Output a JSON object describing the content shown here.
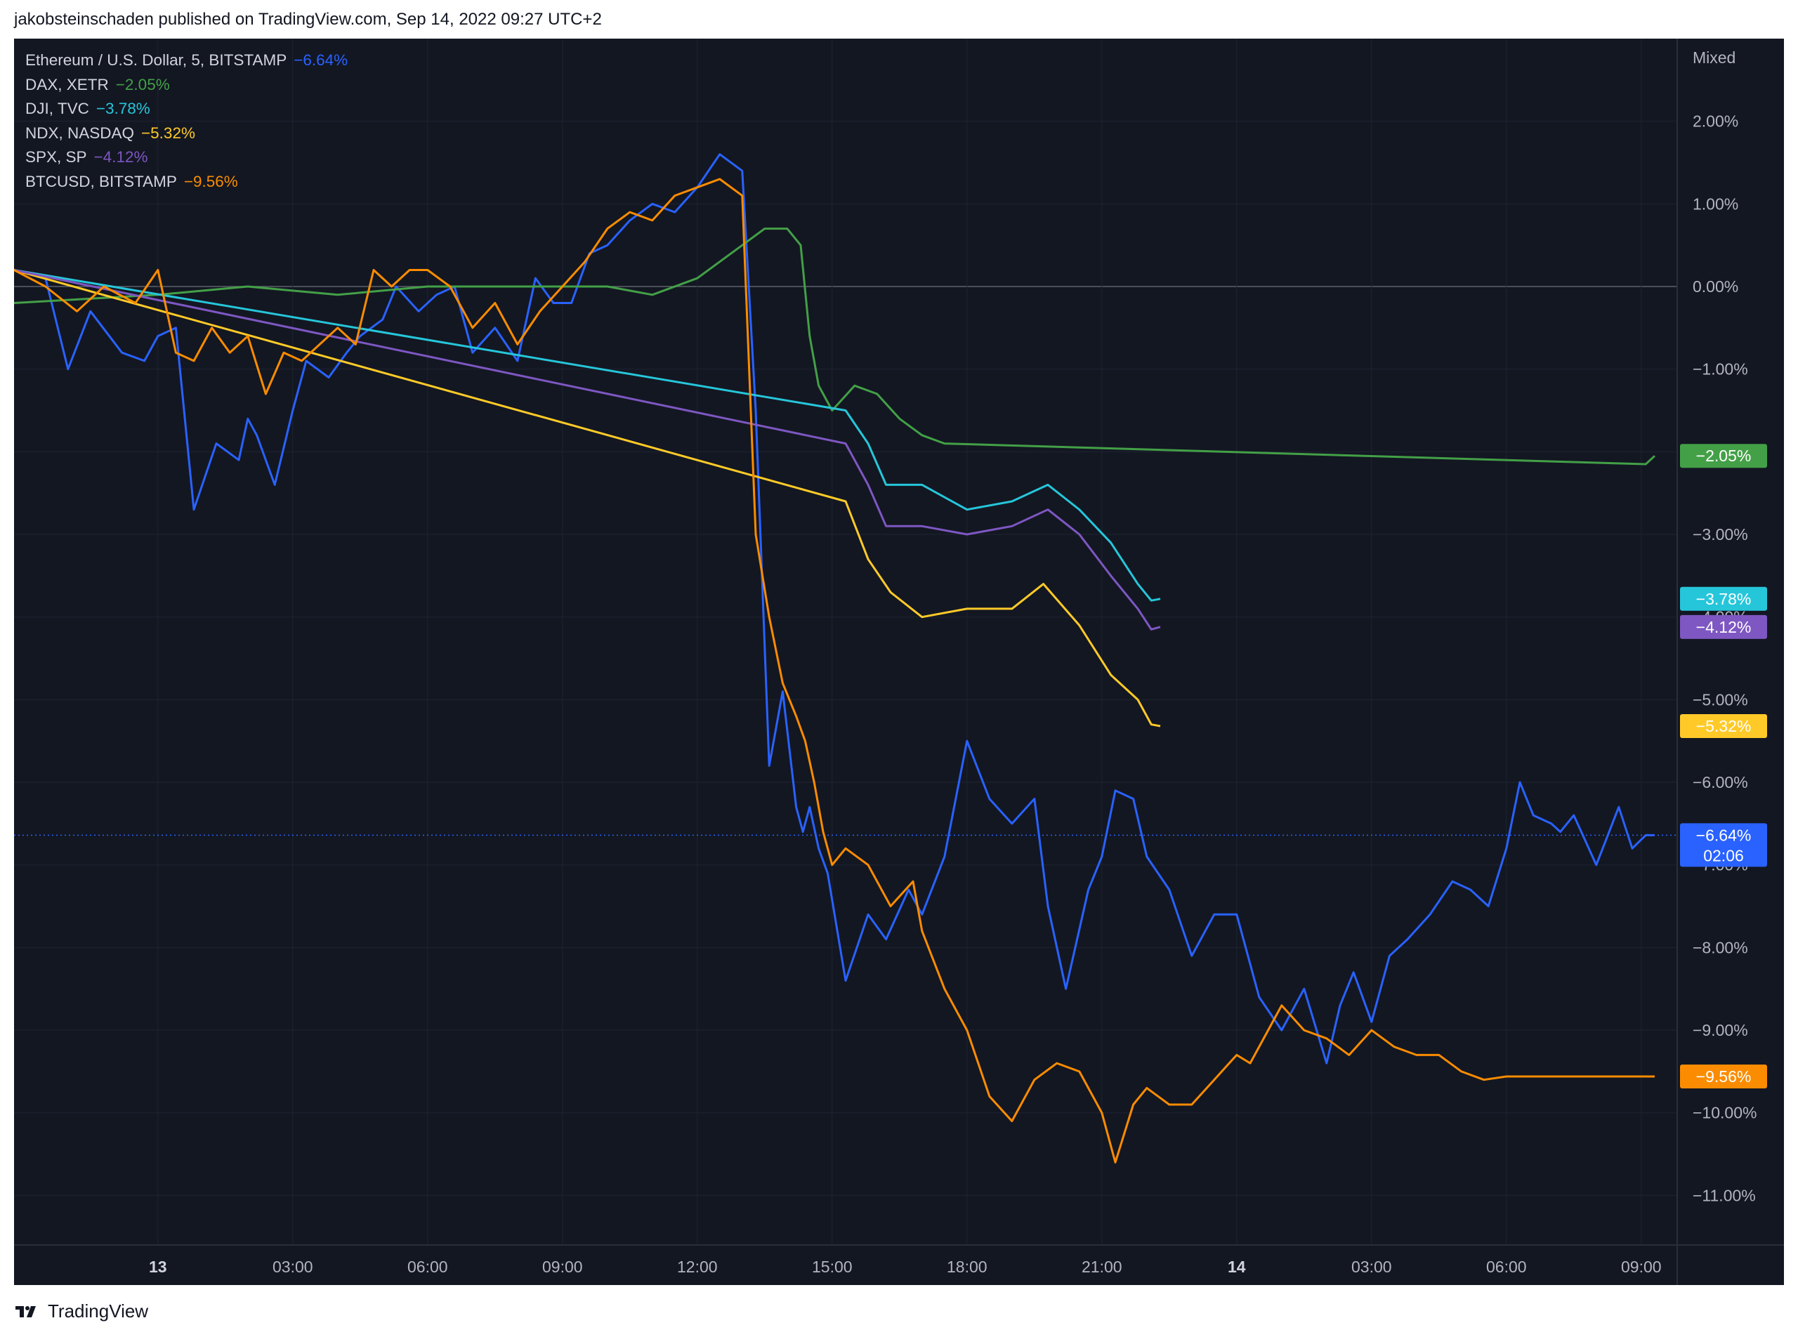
{
  "header": {
    "text": "jakobsteinschaden published on TradingView.com, Sep 14, 2022 09:27 UTC+2"
  },
  "footer": {
    "brand": "TradingView",
    "logo_icon": "tradingview-logo-icon"
  },
  "chart_data": {
    "type": "line",
    "scale_mode": "Mixed",
    "grid": true,
    "legend_placement": "top-left",
    "ylim": [
      -11.6,
      3.0
    ],
    "y_ticks": [
      2,
      1,
      0,
      -1,
      -2,
      -3,
      -4,
      -5,
      -6,
      -7,
      -8,
      -9,
      -10,
      -11
    ],
    "y_tick_labels": [
      "2.00%",
      "1.00%",
      "0.00%",
      "−1.00%",
      "−2.00%",
      "−3.00%",
      "−4.00%",
      "−5.00%",
      "−6.00%",
      "−7.00%",
      "−8.00%",
      "−9.00%",
      "−10.00%",
      "−11.00%"
    ],
    "xlim": [
      -3.2,
      33.8
    ],
    "x_ticks": [
      0,
      3,
      6,
      9,
      12,
      15,
      18,
      21,
      24,
      27,
      30,
      33
    ],
    "x_tick_labels": [
      "13",
      "03:00",
      "06:00",
      "09:00",
      "12:00",
      "15:00",
      "18:00",
      "21:00",
      "14",
      "03:00",
      "06:00",
      "09:00"
    ],
    "x_tick_bold": [
      true,
      false,
      false,
      false,
      false,
      false,
      false,
      false,
      true,
      false,
      false,
      false
    ],
    "last_price_line_value": -6.64,
    "countdown": "02:06",
    "series": [
      {
        "name": "Ethereum / U.S. Dollar, 5, BITSTAMP",
        "change": "−6.64%",
        "label": "−6.64%",
        "color": "#2962ff",
        "last": -6.64,
        "x": [
          -3.2,
          -2.5,
          -2.0,
          -1.5,
          -0.8,
          -0.3,
          0,
          0.4,
          0.8,
          1.3,
          1.8,
          2.0,
          2.2,
          2.6,
          3.0,
          3.3,
          3.8,
          4.2,
          4.5,
          5.0,
          5.3,
          5.8,
          6.2,
          6.6,
          7.0,
          7.5,
          8.0,
          8.4,
          8.8,
          9.2,
          9.6,
          10.0,
          10.5,
          11.0,
          11.5,
          12.0,
          12.5,
          13.0,
          13.3,
          13.6,
          13.9,
          14.2,
          14.35,
          14.5,
          14.7,
          14.9,
          15.3,
          15.8,
          16.2,
          16.7,
          17.0,
          17.5,
          18.0,
          18.5,
          19.0,
          19.5,
          19.8,
          20.2,
          20.7,
          21.0,
          21.3,
          21.7,
          22.0,
          22.5,
          23.0,
          23.5,
          24.0,
          24.5,
          25.0,
          25.5,
          26.0,
          26.3,
          26.6,
          27.0,
          27.4,
          27.8,
          28.3,
          28.8,
          29.2,
          29.6,
          30.0,
          30.3,
          30.6,
          31.0,
          31.2,
          31.5,
          32.0,
          32.5,
          32.8,
          33.1,
          33.3
        ],
        "y": [
          0.2,
          0.1,
          -1.0,
          -0.3,
          -0.8,
          -0.9,
          -0.6,
          -0.5,
          -2.7,
          -1.9,
          -2.1,
          -1.6,
          -1.8,
          -2.4,
          -1.5,
          -0.9,
          -1.1,
          -0.8,
          -0.6,
          -0.4,
          0.0,
          -0.3,
          -0.1,
          0.0,
          -0.8,
          -0.5,
          -0.9,
          0.1,
          -0.2,
          -0.2,
          0.4,
          0.5,
          0.8,
          1.0,
          0.9,
          1.2,
          1.6,
          1.4,
          -1.5,
          -5.8,
          -4.9,
          -6.3,
          -6.6,
          -6.3,
          -6.8,
          -7.1,
          -8.4,
          -7.6,
          -7.9,
          -7.3,
          -7.6,
          -6.9,
          -5.5,
          -6.2,
          -6.5,
          -6.2,
          -7.5,
          -8.5,
          -7.3,
          -6.9,
          -6.1,
          -6.2,
          -6.9,
          -7.3,
          -8.1,
          -7.6,
          -7.6,
          -8.6,
          -9.0,
          -8.5,
          -9.4,
          -8.7,
          -8.3,
          -8.9,
          -8.1,
          -7.9,
          -7.6,
          -7.2,
          -7.3,
          -7.5,
          -6.8,
          -6.0,
          -6.4,
          -6.5,
          -6.6,
          -6.4,
          -7.0,
          -6.3,
          -6.8,
          -6.64,
          -6.64
        ]
      },
      {
        "name": "DAX, XETR",
        "change": "−2.05%",
        "label": "−2.05%",
        "color": "#43a047",
        "last": -2.05,
        "x": [
          -3.2,
          0,
          2.0,
          4.0,
          6.0,
          8.0,
          9.0,
          10.0,
          11.0,
          12.0,
          12.5,
          13.0,
          13.5,
          14.0,
          14.3,
          14.5,
          14.7,
          15.0,
          15.5,
          16.0,
          16.5,
          17.0,
          17.5,
          33.1,
          33.3
        ],
        "y": [
          -0.2,
          -0.1,
          0.0,
          -0.1,
          0.0,
          0.0,
          0.0,
          0.0,
          -0.1,
          0.1,
          0.3,
          0.5,
          0.7,
          0.7,
          0.5,
          -0.6,
          -1.2,
          -1.5,
          -1.2,
          -1.3,
          -1.6,
          -1.8,
          -1.9,
          -2.15,
          -2.05
        ]
      },
      {
        "name": "DJI, TVC",
        "change": "−3.78%",
        "label": "−3.78%",
        "color": "#26c6da",
        "last": -3.78,
        "x": [
          -3.2,
          15.3,
          15.8,
          16.2,
          17.0,
          18.0,
          19.0,
          19.8,
          20.5,
          21.2,
          21.8,
          22.1,
          22.3
        ],
        "y": [
          0.2,
          -1.5,
          -1.9,
          -2.4,
          -2.4,
          -2.7,
          -2.6,
          -2.4,
          -2.7,
          -3.1,
          -3.6,
          -3.8,
          -3.78
        ]
      },
      {
        "name": "NDX, NASDAQ",
        "change": "−5.32%",
        "label": "−5.32%",
        "color": "#ffca28",
        "last": -5.32,
        "x": [
          -3.2,
          15.3,
          15.8,
          16.3,
          17.0,
          18.0,
          19.0,
          19.7,
          20.5,
          21.2,
          21.8,
          22.1,
          22.3
        ],
        "y": [
          0.2,
          -2.6,
          -3.3,
          -3.7,
          -4.0,
          -3.9,
          -3.9,
          -3.6,
          -4.1,
          -4.7,
          -5.0,
          -5.3,
          -5.32
        ]
      },
      {
        "name": "SPX, SP",
        "change": "−4.12%",
        "label": "−4.12%",
        "color": "#7e57c2",
        "last": -4.12,
        "x": [
          -3.2,
          15.3,
          15.8,
          16.2,
          17.0,
          18.0,
          19.0,
          19.8,
          20.5,
          21.2,
          21.8,
          22.1,
          22.3
        ],
        "y": [
          0.2,
          -1.9,
          -2.4,
          -2.9,
          -2.9,
          -3.0,
          -2.9,
          -2.7,
          -3.0,
          -3.5,
          -3.9,
          -4.15,
          -4.12
        ]
      },
      {
        "name": "BTCUSD, BITSTAMP",
        "change": "−9.56%",
        "label": "−9.56%",
        "color": "#fb8c00",
        "last": -9.56,
        "x": [
          -3.2,
          -2.5,
          -1.8,
          -1.2,
          -0.5,
          0,
          0.4,
          0.8,
          1.2,
          1.6,
          2.0,
          2.4,
          2.8,
          3.2,
          3.6,
          4.0,
          4.4,
          4.8,
          5.2,
          5.6,
          6.0,
          6.5,
          7.0,
          7.5,
          8.0,
          8.5,
          9.0,
          9.5,
          10.0,
          10.5,
          11.0,
          11.5,
          12.0,
          12.5,
          13.0,
          13.3,
          13.6,
          13.9,
          14.2,
          14.4,
          14.6,
          14.8,
          15.0,
          15.3,
          15.8,
          16.3,
          16.8,
          17.0,
          17.5,
          18.0,
          18.5,
          19.0,
          19.5,
          20.0,
          20.5,
          21.0,
          21.3,
          21.7,
          22.0,
          22.5,
          23.0,
          23.5,
          24.0,
          24.3,
          24.7,
          25.0,
          25.5,
          26.0,
          26.5,
          27.0,
          27.5,
          28.0,
          28.5,
          29.0,
          29.5,
          30.0,
          30.5,
          31.0,
          31.5,
          32.0,
          32.5,
          32.8,
          33.1,
          33.3
        ],
        "y": [
          0.2,
          0.0,
          -0.3,
          0.0,
          -0.2,
          0.2,
          -0.8,
          -0.9,
          -0.5,
          -0.8,
          -0.6,
          -1.3,
          -0.8,
          -0.9,
          -0.7,
          -0.5,
          -0.7,
          0.2,
          0.0,
          0.2,
          0.2,
          0.0,
          -0.5,
          -0.2,
          -0.7,
          -0.3,
          0.0,
          0.3,
          0.7,
          0.9,
          0.8,
          1.1,
          1.2,
          1.3,
          1.1,
          -3.0,
          -4.0,
          -4.8,
          -5.2,
          -5.5,
          -6.0,
          -6.6,
          -7.0,
          -6.8,
          -7.0,
          -7.5,
          -7.2,
          -7.8,
          -8.5,
          -9.0,
          -9.8,
          -10.1,
          -9.6,
          -9.4,
          -9.5,
          -10.0,
          -10.6,
          -9.9,
          -9.7,
          -9.9,
          -9.9,
          -9.6,
          -9.3,
          -9.4,
          -9.0,
          -8.7,
          -9.0,
          -9.1,
          -9.3,
          -9.0,
          -9.2,
          -9.3,
          -9.3,
          -9.5,
          -9.6,
          -9.56,
          -9.56,
          -9.56,
          -9.56,
          -9.56,
          -9.56,
          -9.56,
          -9.56,
          -9.56
        ]
      }
    ]
  }
}
